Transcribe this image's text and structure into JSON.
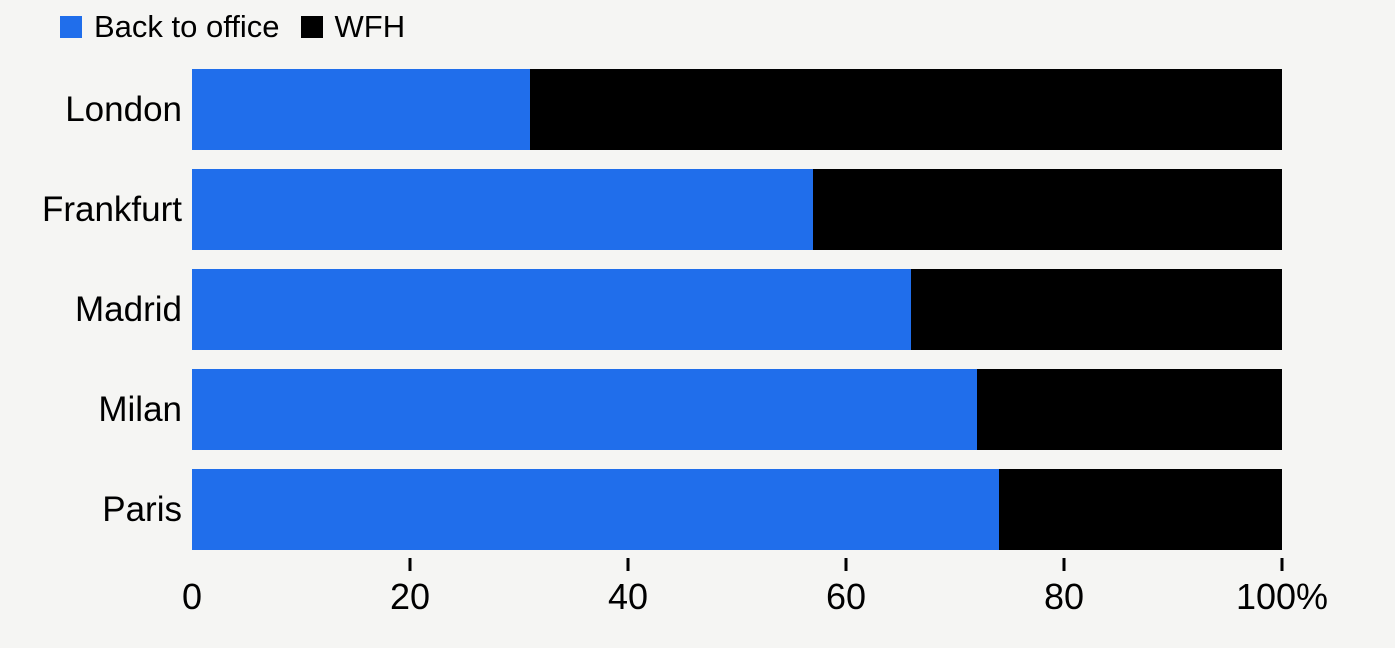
{
  "colors": {
    "background": "#f5f5f3",
    "back_to_office": "#206eeb",
    "wfh": "#000000",
    "text": "#000000"
  },
  "legend": {
    "items": [
      {
        "label": "Back to office",
        "color": "#206eeb"
      },
      {
        "label": "WFH",
        "color": "#000000"
      }
    ]
  },
  "chart_data": {
    "type": "bar",
    "orientation": "horizontal",
    "stacked": true,
    "title": "",
    "xlabel": "",
    "ylabel": "",
    "categories": [
      "London",
      "Frankfurt",
      "Madrid",
      "Milan",
      "Paris"
    ],
    "series": [
      {
        "name": "Back to office",
        "color": "#206eeb",
        "values": [
          31,
          57,
          66,
          72,
          74
        ]
      },
      {
        "name": "WFH",
        "color": "#000000",
        "values": [
          69,
          43,
          34,
          28,
          26
        ]
      }
    ],
    "xlim": [
      0,
      100
    ],
    "x_ticks": [
      0,
      20,
      40,
      60,
      80,
      100
    ],
    "x_tick_labels": [
      "0",
      "20",
      "40",
      "60",
      "80",
      "100%"
    ],
    "ticks_with_marks": [
      20,
      40,
      60,
      80,
      100
    ],
    "legend_position": "top-left",
    "grid": false
  }
}
